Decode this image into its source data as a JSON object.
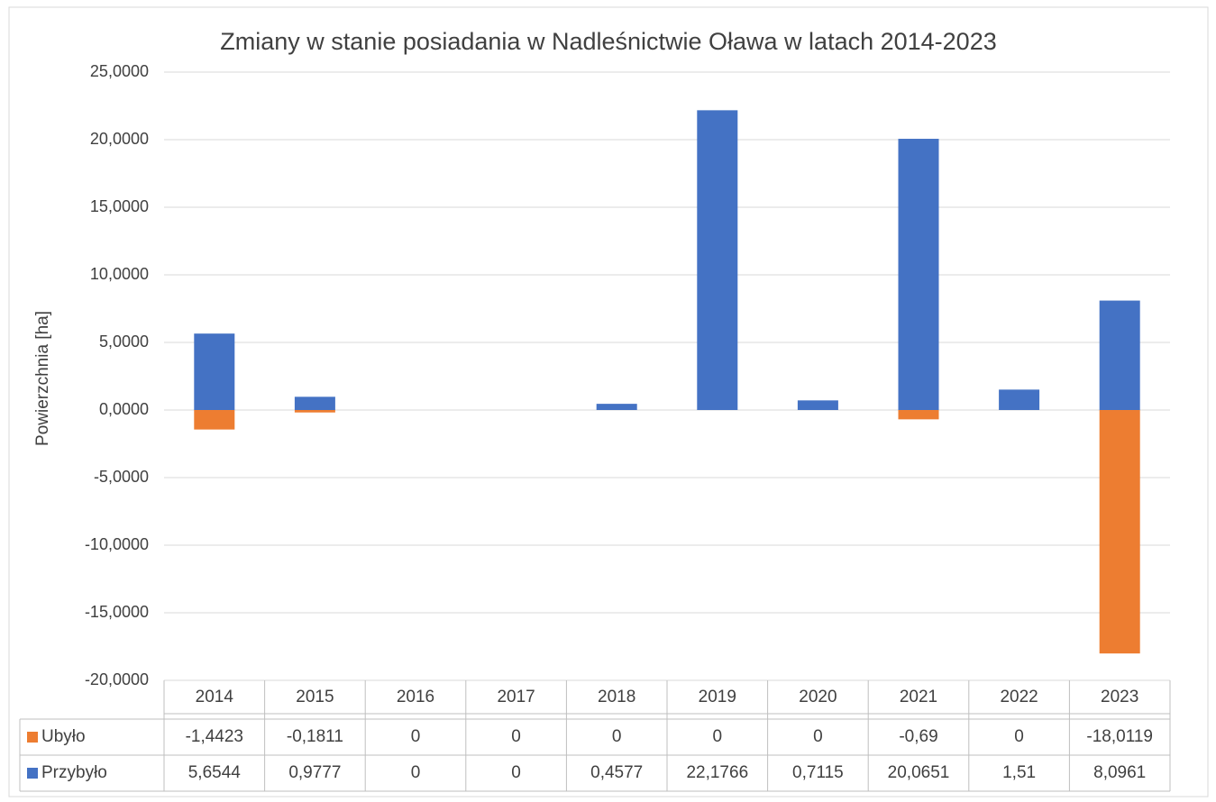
{
  "chart_data": {
    "type": "bar",
    "stacked": true,
    "title": "Zmiany w stanie posiadania w Nadleśnictwie Oława w latach 2014-2023",
    "ylabel": "Powierzchnia [ha]",
    "categories": [
      "2014",
      "2015",
      "2016",
      "2017",
      "2018",
      "2019",
      "2020",
      "2021",
      "2022",
      "2023"
    ],
    "series": [
      {
        "name": "Ubyło",
        "color": "#ed7d31",
        "values": [
          -1.4423,
          -0.1811,
          0,
          0,
          0,
          0,
          0,
          -0.69,
          0,
          -18.0119
        ],
        "value_labels": [
          "-1,4423",
          "-0,1811",
          "0",
          "0",
          "0",
          "0",
          "0",
          "-0,69",
          "0",
          "-18,0119"
        ]
      },
      {
        "name": "Przybyło",
        "color": "#4472c4",
        "values": [
          5.6544,
          0.9777,
          0,
          0,
          0.4577,
          22.1766,
          0.7115,
          20.0651,
          1.51,
          8.0961
        ],
        "value_labels": [
          "5,6544",
          "0,9777",
          "0",
          "0",
          "0,4577",
          "22,1766",
          "0,7115",
          "20,0651",
          "1,51",
          "8,0961"
        ]
      }
    ],
    "ylim": [
      -20,
      25
    ],
    "yticks": [
      {
        "value": -20,
        "label": "-20,0000"
      },
      {
        "value": -15,
        "label": "-15,0000"
      },
      {
        "value": -10,
        "label": "-10,0000"
      },
      {
        "value": -5,
        "label": "-5,0000"
      },
      {
        "value": 0,
        "label": "0,0000"
      },
      {
        "value": 5,
        "label": "5,0000"
      },
      {
        "value": 10,
        "label": "10,0000"
      },
      {
        "value": 15,
        "label": "15,0000"
      },
      {
        "value": 20,
        "label": "20,0000"
      },
      {
        "value": 25,
        "label": "25,0000"
      }
    ],
    "grid": true,
    "legend": "data-table"
  }
}
